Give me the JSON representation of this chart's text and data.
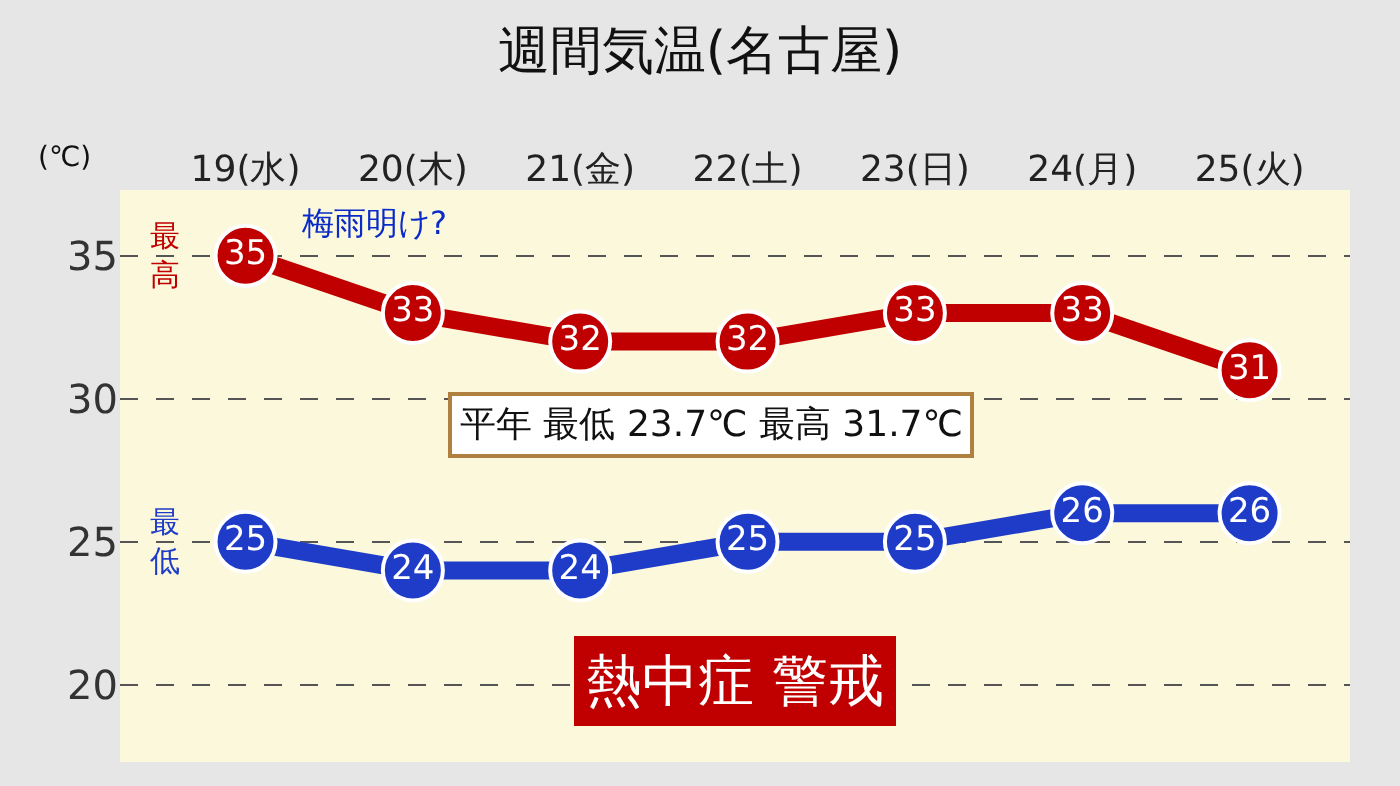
{
  "chart_data": {
    "type": "line",
    "title": "週間気温(名古屋)",
    "ylabel": "(℃)",
    "categories": [
      "19(水)",
      "20(木)",
      "21(金)",
      "22(土)",
      "23(日)",
      "24(月)",
      "25(火)"
    ],
    "series": [
      {
        "name": "最高",
        "color": "#c00000",
        "values": [
          35,
          33,
          32,
          32,
          33,
          33,
          31
        ]
      },
      {
        "name": "最低",
        "color": "#1e3cc8",
        "values": [
          25,
          24,
          24,
          25,
          25,
          26,
          26
        ]
      }
    ],
    "annotations": [
      "梅雨明け?",
      "平年 最低 23.7℃ 最高 31.7℃",
      "熱中症 警戒"
    ],
    "ylim": [
      17.3,
      37.3
    ],
    "yticks": [
      20,
      25,
      30,
      35
    ],
    "grid": "y",
    "legend": false,
    "marker": "circle",
    "line_style": "solid",
    "data_labels": true
  }
}
